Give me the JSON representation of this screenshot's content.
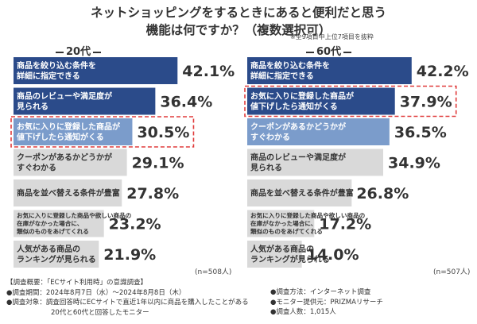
{
  "title": {
    "line1": "ネットショッピングをするときにあると便利だと思う",
    "line2": "機能は何ですか？（複数選択可）"
  },
  "subnote": "※全9項目中上位7項目を抜粋",
  "colors": {
    "highlight_bar": "#2b4b8a",
    "secondary_bar": "#7b9ccb",
    "gray_bar": "#d9d9d9",
    "bar_text_light": "#ffffff",
    "bar_text_dark": "#333333",
    "value_text": "#333333",
    "dashed_box": "#e03c3c"
  },
  "chart_data": [
    {
      "type": "bar",
      "title": "20代",
      "n_note": "(n=508人)",
      "categories": [
        [
          "商品を絞り込む条件を",
          "詳細に指定できる"
        ],
        [
          "商品のレビューや満足度が",
          "見られる"
        ],
        [
          "お気に入りに登録した商品が",
          "値下げしたら通知がくる"
        ],
        [
          "クーポンがあるかどうかが",
          "すぐわかる"
        ],
        [
          "商品を並べ替える条件が豊富"
        ],
        [
          "お気に入りに登録した商品や欲しい商品の",
          "在庫がなかった場合に、",
          "類似のものをあげてくれる"
        ],
        [
          "人気がある商品の",
          "ランキングが見られる"
        ]
      ],
      "values": [
        42.1,
        36.4,
        30.5,
        29.1,
        27.8,
        23.2,
        21.9
      ],
      "value_labels": [
        "42.1%",
        "36.4%",
        "30.5%",
        "29.1%",
        "27.8%",
        "23.2%",
        "21.9%"
      ],
      "styles": [
        "dark",
        "dark",
        "light",
        "gray",
        "gray",
        "gray",
        "gray"
      ],
      "highlighted_index": 2
    },
    {
      "type": "bar",
      "title": "60代",
      "n_note": "(n=507人)",
      "categories": [
        [
          "商品を絞り込む条件を",
          "詳細に指定できる"
        ],
        [
          "お気に入りに登録した商品が",
          "値下げしたら通知がくる"
        ],
        [
          "クーポンがあるかどうかが",
          "すぐわかる"
        ],
        [
          "商品のレビューや満足度が",
          "見られる"
        ],
        [
          "商品を並べ替える条件が豊富"
        ],
        [
          "お気に入りに登録した商品や欲しい商品の",
          "在庫がなかった場合に、",
          "類似のものをあげてくれる"
        ],
        [
          "人気がある商品の",
          "ランキングが見られる"
        ]
      ],
      "values": [
        42.2,
        37.9,
        36.5,
        34.9,
        26.8,
        17.2,
        14.0
      ],
      "value_labels": [
        "42.2%",
        "37.9%",
        "36.5%",
        "34.9%",
        "26.8%",
        "17.2%",
        "14.0%"
      ],
      "styles": [
        "dark",
        "dark",
        "light",
        "gray",
        "gray",
        "gray",
        "gray"
      ],
      "highlighted_index": 1
    }
  ],
  "footer_left": [
    "【調査概要：「ECサイト利用時」の意識調査】",
    "●調査期間：2024年8月7日（水）〜2024年8月8日（木）",
    "●調査対象：調査回答時にECサイトで直近1年以内に商品を購入したことがある",
    "20代と60代と回答したモニター"
  ],
  "footer_right": [
    "●調査方法：インターネット調査",
    "●モニター提供元：PRIZMAリサーチ",
    "●調査人数：1,015人"
  ]
}
